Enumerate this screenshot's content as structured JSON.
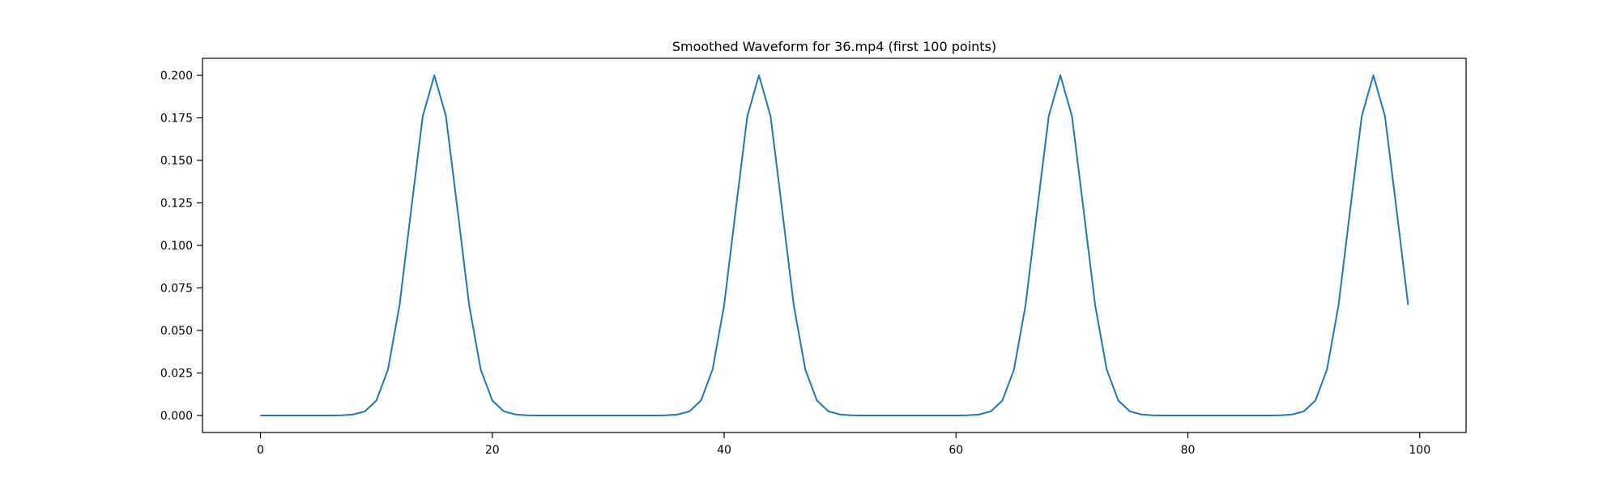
{
  "chart_data": {
    "type": "line",
    "title": "Smoothed Waveform for 36.mp4 (first 100 points)",
    "xlabel": "",
    "ylabel": "",
    "xlim": [
      -5,
      104
    ],
    "ylim": [
      -0.01,
      0.21
    ],
    "x_ticks": [
      0,
      20,
      40,
      60,
      80,
      100
    ],
    "x_tick_labels": [
      "0",
      "20",
      "40",
      "60",
      "80",
      "100"
    ],
    "y_ticks": [
      0.0,
      0.025,
      0.05,
      0.075,
      0.1,
      0.125,
      0.15,
      0.175,
      0.2
    ],
    "y_tick_labels": [
      "0.000",
      "0.025",
      "0.050",
      "0.075",
      "0.100",
      "0.125",
      "0.150",
      "0.175",
      "0.200"
    ],
    "grid": false,
    "line_color": "#1f77b4",
    "x": [
      0,
      1,
      2,
      3,
      4,
      5,
      6,
      7,
      8,
      9,
      10,
      11,
      12,
      13,
      14,
      15,
      16,
      17,
      18,
      19,
      20,
      21,
      22,
      23,
      24,
      25,
      26,
      27,
      28,
      29,
      30,
      31,
      32,
      33,
      34,
      35,
      36,
      37,
      38,
      39,
      40,
      41,
      42,
      43,
      44,
      45,
      46,
      47,
      48,
      49,
      50,
      51,
      52,
      53,
      54,
      55,
      56,
      57,
      58,
      59,
      60,
      61,
      62,
      63,
      64,
      65,
      66,
      67,
      68,
      69,
      70,
      71,
      72,
      73,
      74,
      75,
      76,
      77,
      78,
      79,
      80,
      81,
      82,
      83,
      84,
      85,
      86,
      87,
      88,
      89,
      90,
      91,
      92,
      93,
      94,
      95,
      96,
      97,
      98,
      99
    ],
    "y": [
      0.0,
      0.0,
      0.0,
      0.0,
      0.0,
      0.0,
      0.0,
      0.0001,
      0.0006,
      0.0024,
      0.0088,
      0.027,
      0.065,
      0.121,
      0.176,
      0.2,
      0.176,
      0.121,
      0.065,
      0.027,
      0.0088,
      0.0024,
      0.0006,
      0.0001,
      0.0,
      0.0,
      0.0,
      0.0,
      0.0,
      0.0,
      0.0,
      0.0,
      0.0,
      0.0,
      0.0,
      0.0001,
      0.0006,
      0.0024,
      0.0088,
      0.027,
      0.065,
      0.121,
      0.176,
      0.2,
      0.176,
      0.121,
      0.065,
      0.027,
      0.0088,
      0.0024,
      0.0006,
      0.0001,
      0.0,
      0.0,
      0.0,
      0.0,
      0.0,
      0.0,
      0.0,
      0.0,
      0.0,
      0.0001,
      0.0006,
      0.0024,
      0.0088,
      0.027,
      0.065,
      0.121,
      0.176,
      0.2,
      0.176,
      0.121,
      0.065,
      0.027,
      0.0088,
      0.0024,
      0.0006,
      0.0001,
      0.0,
      0.0,
      0.0,
      0.0,
      0.0,
      0.0,
      0.0,
      0.0,
      0.0,
      0.0,
      0.0001,
      0.0006,
      0.0024,
      0.0088,
      0.027,
      0.065,
      0.121,
      0.176,
      0.2,
      0.176,
      0.121,
      0.065
    ]
  }
}
